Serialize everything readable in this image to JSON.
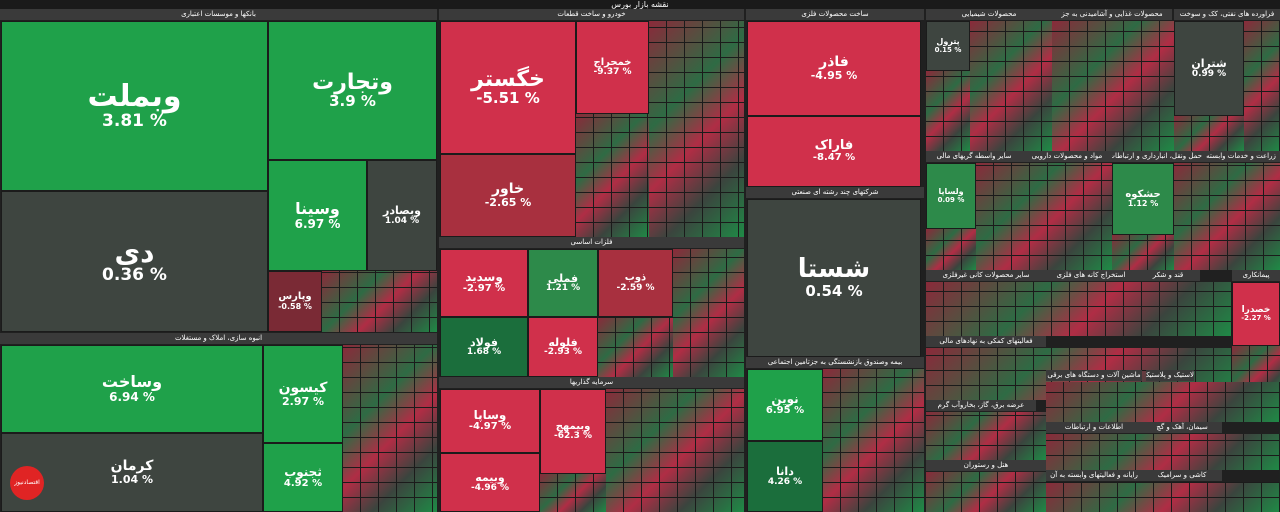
{
  "header": {
    "title": "نقشه بازار بورس"
  },
  "sectors": {
    "banks": "بانکها و موسسات اعتباری",
    "auto": "خودرو و ساخت قطعات",
    "basic_metals": "ساخت محصولات فلزی",
    "chemical": "محصولات شیمیایی",
    "food": "محصولات غذایی و آشامیدنی به جز",
    "oil": "فراورده های نفتی، کک و سوخت",
    "realestate": "انبوه سازی، املاک و مستغلات",
    "metals": "فلزات اساسی",
    "investment": "سرمایه گذاریها",
    "multi": "شرکتهای چند رشته ای صنعتی",
    "insurance": "بیمه وصندوق بازنشستگی به جزتامین اجتماعی",
    "minerals": "سایر محصولات کانی غیرفلزی",
    "cement": "سیمان، آهک و گچ",
    "pharma": "مواد و محصولات دارویی",
    "transport": "حمل ونقل، انبارداری و ارتباطات",
    "tiles": "کاشی و سرامیک",
    "finance": "فعالیتهای کمکی به نهادهای مالی",
    "mining": "استخراج کانه های فلزی",
    "hotel": "هتل و رستوران",
    "computer": "رایانه و فعالیتهای وابسته به آن",
    "machinery": "ماشین آلات و دستگاه های برقی",
    "info": "اطلاعات و ارتباطات",
    "plastic": "لاستیک و پلاستیک",
    "agri": "زراعت و خدمات وابسته",
    "contract": "پیمانکاری",
    "electric": "سایر واسطه گریهای مالی",
    "sugar": "قند و شکر",
    "textile": "عرضه برق، گاز، بخاروآب گرم"
  },
  "tiles": {
    "vbmellat": {
      "name": "وبملت",
      "pct": "% 3.81"
    },
    "vtejarat": {
      "name": "وتجارت",
      "pct": "% 3.9"
    },
    "dey": {
      "name": "دی",
      "pct": "% 0.36"
    },
    "vsina": {
      "name": "وسینا",
      "pct": "% 6.97"
    },
    "vbsader": {
      "name": "وبصادر",
      "pct": "% 1.04"
    },
    "vpars": {
      "name": "وپارس",
      "pct": "% 0.58-"
    },
    "vsakht": {
      "name": "وساخت",
      "pct": "% 6.94"
    },
    "kerman": {
      "name": "کرمان",
      "pct": "% 1.04"
    },
    "kison": {
      "name": "کیسون",
      "pct": "% 2.97"
    },
    "tjonub": {
      "name": "ثجنوب",
      "pct": "% 4.92"
    },
    "khegostar": {
      "name": "خگستر",
      "pct": "% 5.51-"
    },
    "khavar": {
      "name": "خاور",
      "pct": "% 2.65-"
    },
    "khamraj": {
      "name": "خمحراج",
      "pct": "% 9.37-"
    },
    "vsadid": {
      "name": "وسدید",
      "pct": "% 2.97-"
    },
    "femli": {
      "name": "فملی",
      "pct": "% 1.21"
    },
    "zob": {
      "name": "ذوب",
      "pct": "% 2.59-"
    },
    "foolad": {
      "name": "فولاد",
      "pct": "% 1.68"
    },
    "folouleh": {
      "name": "فلوله",
      "pct": "% 2.93-"
    },
    "vsapa": {
      "name": "وساپا",
      "pct": "% 4.97-"
    },
    "vbemhr": {
      "name": "وبیمهج",
      "pct": "% 62.3-"
    },
    "vbimeh": {
      "name": "وبیمه",
      "pct": "% 4.96-"
    },
    "fader": {
      "name": "فاذر",
      "pct": "% 4.95-"
    },
    "farak": {
      "name": "فاراک",
      "pct": "% 8.47-"
    },
    "shasta": {
      "name": "شستا",
      "pct": "% 0.54"
    },
    "novin": {
      "name": "نوین",
      "pct": "% 6.95"
    },
    "dana": {
      "name": "دانا",
      "pct": "% 4.26"
    },
    "shatran": {
      "name": "شتران",
      "pct": "% 0.99"
    },
    "heshko": {
      "name": "حشکوه",
      "pct": "% 1.12"
    },
    "khodra": {
      "name": "خصدرا",
      "pct": "% 2.27-"
    },
    "petrol": {
      "name": "پترول",
      "pct": "% 0.15"
    },
    "vsanpa": {
      "name": "ولساپا",
      "pct": "% 0.09"
    }
  },
  "brand": {
    "logo_text": "اقتصادنیوز"
  }
}
